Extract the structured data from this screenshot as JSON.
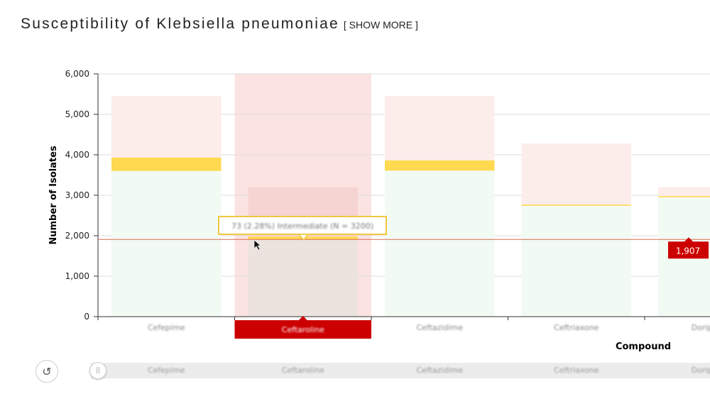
{
  "header": {
    "title": "Susceptibility of Klebsiella pneumoniae",
    "show_more": "[ SHOW MORE ]"
  },
  "colors": {
    "susceptible": "#f2faf4",
    "intermediate": "#ffd94f",
    "resistant": "#fcecea",
    "highlight": "#cc0000",
    "crosshair": "#e06a50"
  },
  "chart_data": {
    "type": "bar",
    "stacked": true,
    "ylabel": "Number of Isolates",
    "xlabel": "Compound",
    "ylim": [
      0,
      6000
    ],
    "yticks": [
      "0",
      "1,000",
      "2,000",
      "3,000",
      "4,000",
      "5,000",
      "6,000"
    ],
    "grid": true,
    "categories": [
      "Cefepime",
      "Ceftaroline",
      "Ceftazidime",
      "Ceftriaxone",
      "Doripenem"
    ],
    "series": [
      {
        "key": "susceptible",
        "values": [
          3600,
          1907,
          3610,
          2740,
          2950
        ]
      },
      {
        "key": "intermediate",
        "values": [
          330,
          73,
          250,
          30,
          30
        ]
      },
      {
        "key": "resistant",
        "values": [
          1520,
          1220,
          1590,
          1510,
          220
        ]
      }
    ],
    "highlighted_category": "Ceftaroline",
    "crosshair_value": "1,907",
    "tooltip": "73 (2.28%) Intermediate (N = 3200)"
  },
  "navigator": {
    "reset_icon": "reset-icon",
    "handle_icon": "drag-handle-icon"
  }
}
